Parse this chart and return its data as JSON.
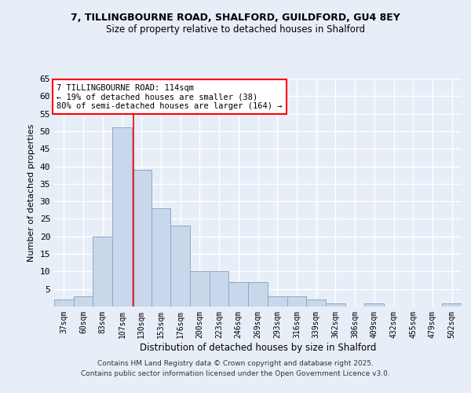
{
  "title1": "7, TILLINGBOURNE ROAD, SHALFORD, GUILDFORD, GU4 8EY",
  "title2": "Size of property relative to detached houses in Shalford",
  "xlabel": "Distribution of detached houses by size in Shalford",
  "ylabel": "Number of detached properties",
  "categories": [
    "37sqm",
    "60sqm",
    "83sqm",
    "107sqm",
    "130sqm",
    "153sqm",
    "176sqm",
    "200sqm",
    "223sqm",
    "246sqm",
    "269sqm",
    "293sqm",
    "316sqm",
    "339sqm",
    "362sqm",
    "386sqm",
    "409sqm",
    "432sqm",
    "455sqm",
    "479sqm",
    "502sqm"
  ],
  "values": [
    2,
    3,
    20,
    51,
    39,
    28,
    23,
    10,
    10,
    7,
    7,
    3,
    3,
    2,
    1,
    0,
    1,
    0,
    0,
    0,
    1
  ],
  "bar_color": "#c8d8ea",
  "bar_edge_color": "#8aaac8",
  "red_line_x": 3.6,
  "property_label": "7 TILLINGBOURNE ROAD: 114sqm",
  "annotation_line1": "← 19% of detached houses are smaller (38)",
  "annotation_line2": "80% of semi-detached houses are larger (164) →",
  "ylim": [
    0,
    65
  ],
  "yticks": [
    0,
    5,
    10,
    15,
    20,
    25,
    30,
    35,
    40,
    45,
    50,
    55,
    60,
    65
  ],
  "bg_color": "#e8eef8",
  "grid_color": "#ffffff",
  "footer1": "Contains HM Land Registry data © Crown copyright and database right 2025.",
  "footer2": "Contains public sector information licensed under the Open Government Licence v3.0."
}
